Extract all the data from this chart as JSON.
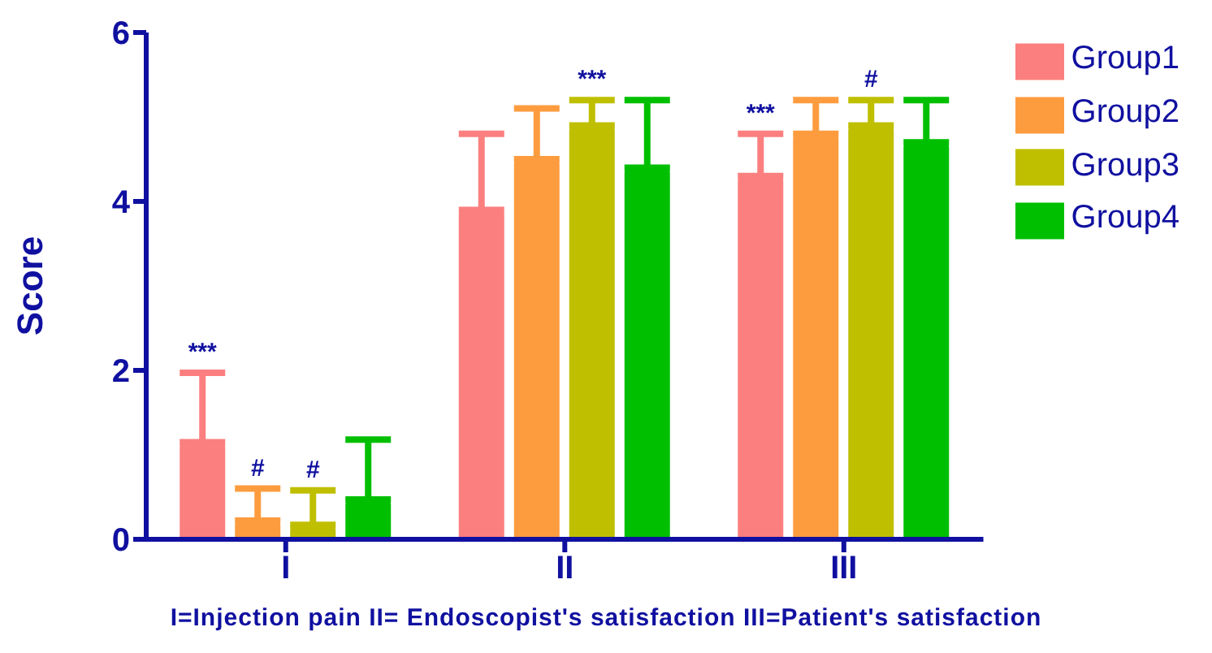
{
  "chart_data": {
    "type": "bar",
    "ylabel": "Score",
    "categories": [
      "I",
      "II",
      "III"
    ],
    "series": [
      {
        "name": "Group1",
        "color": "#fc7f7f",
        "values": [
          1.15,
          3.9,
          4.3
        ],
        "errors": [
          [
            1.15,
            1.97
          ],
          [
            3.9,
            4.8
          ],
          [
            4.3,
            4.8
          ]
        ],
        "value_labels": [
          "***",
          null,
          "***"
        ]
      },
      {
        "name": "Group2",
        "color": "#fd9c3f",
        "values": [
          0.22,
          4.5,
          4.8
        ],
        "errors": [
          [
            0.22,
            0.6
          ],
          [
            4.5,
            5.1
          ],
          [
            4.8,
            5.2
          ]
        ],
        "value_labels": [
          "#",
          null,
          null
        ]
      },
      {
        "name": "Group3",
        "color": "#bfbf00",
        "values": [
          0.17,
          4.9,
          4.9
        ],
        "errors": [
          [
            0.17,
            0.58
          ],
          [
            4.9,
            5.2
          ],
          [
            4.9,
            5.2
          ]
        ],
        "value_labels": [
          "#",
          "***",
          "#"
        ]
      },
      {
        "name": "Group4",
        "color": "#00bf00",
        "values": [
          0.47,
          4.4,
          4.7
        ],
        "errors": [
          [
            0.47,
            1.18
          ],
          [
            4.4,
            5.2
          ],
          [
            4.7,
            5.2
          ]
        ]
      }
    ],
    "ylim": [
      0,
      6
    ],
    "yticks": [
      0,
      2,
      4,
      6
    ],
    "legend": "top right",
    "annotations": [
      "I=Injection pain II= Endoscopist's satisfaction III=Patient's satisfaction"
    ]
  }
}
